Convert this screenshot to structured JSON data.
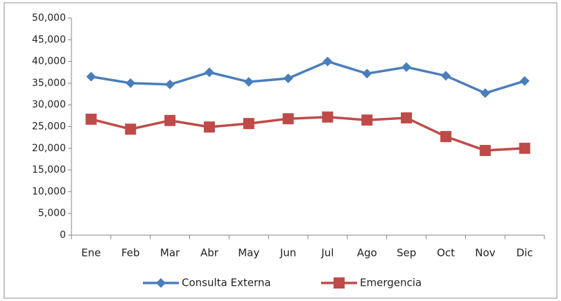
{
  "chart_data": {
    "type": "line",
    "categories": [
      "Ene",
      "Feb",
      "Mar",
      "Abr",
      "May",
      "Jun",
      "Jul",
      "Ago",
      "Sep",
      "Oct",
      "Nov",
      "Dic"
    ],
    "series": [
      {
        "name": "Consulta Externa",
        "color": "#4a7ebb",
        "marker": "diamond",
        "values": [
          36500,
          35000,
          34700,
          37500,
          35300,
          36100,
          40000,
          37200,
          38700,
          36700,
          32700,
          35500
        ]
      },
      {
        "name": "Emergencia",
        "color": "#be4b48",
        "marker": "square",
        "values": [
          26700,
          24400,
          26400,
          24900,
          25700,
          26800,
          27200,
          26500,
          27000,
          22700,
          19500,
          20000
        ]
      }
    ],
    "ylim": [
      0,
      50000
    ],
    "yticks": [
      0,
      {
        "value": 5000,
        "label": "5,000"
      },
      {
        "value": 10000,
        "label": "10,000"
      },
      {
        "value": 15000,
        "label": "15,000"
      },
      {
        "value": 20000,
        "label": "20,000"
      },
      {
        "value": 25000,
        "label": "25,000"
      },
      {
        "value": 30000,
        "label": "30,000"
      },
      {
        "value": 35000,
        "label": "35,000"
      },
      {
        "value": 40000,
        "label": "40,000"
      },
      {
        "value": 45000,
        "label": "45,000"
      },
      {
        "value": 50000,
        "label": "50,000"
      }
    ],
    "grid": false,
    "legend": "bottom"
  }
}
